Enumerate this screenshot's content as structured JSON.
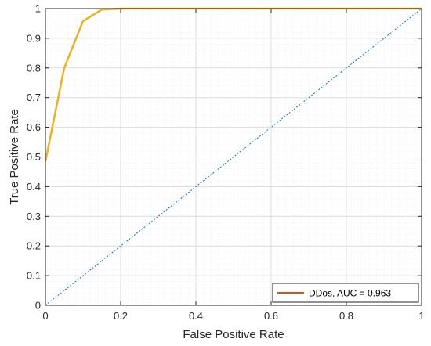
{
  "chart_data": {
    "type": "line",
    "title": "",
    "xlabel": "False Positive Rate",
    "ylabel": "True Positive Rate",
    "xlim": [
      0,
      1
    ],
    "ylim": [
      0,
      1
    ],
    "xticks": [
      0,
      0.2,
      0.4,
      0.6,
      0.8,
      1
    ],
    "xtick_labels": [
      "0",
      "0.2",
      "0.4",
      "0.6",
      "0.8",
      "1"
    ],
    "yticks": [
      0,
      0.1,
      0.2,
      0.3,
      0.4,
      0.5,
      0.6,
      0.7,
      0.8,
      0.9,
      1
    ],
    "ytick_labels": [
      "0",
      "0.1",
      "0.2",
      "0.3",
      "0.4",
      "0.5",
      "0.6",
      "0.7",
      "0.8",
      "0.9",
      "1"
    ],
    "grid": true,
    "legend_position": "bottom-right",
    "series": [
      {
        "name": "DDos, AUC = 0.963",
        "color": "#edb120",
        "legend_color": "#d95319",
        "x": [
          0,
          0.05,
          0.1,
          0.15,
          0.2,
          1
        ],
        "y": [
          0.485,
          0.8,
          0.958,
          0.997,
          1.0,
          1.0
        ]
      }
    ],
    "reference_line": {
      "color": "#0072bd",
      "style": "dotted",
      "x": [
        0,
        1
      ],
      "y": [
        0,
        1
      ]
    }
  }
}
